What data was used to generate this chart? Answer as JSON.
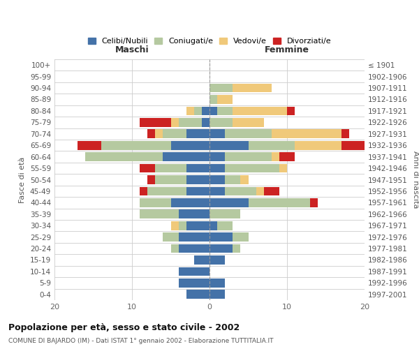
{
  "age_groups": [
    "0-4",
    "5-9",
    "10-14",
    "15-19",
    "20-24",
    "25-29",
    "30-34",
    "35-39",
    "40-44",
    "45-49",
    "50-54",
    "55-59",
    "60-64",
    "65-69",
    "70-74",
    "75-79",
    "80-84",
    "85-89",
    "90-94",
    "95-99",
    "100+"
  ],
  "birth_years": [
    "1997-2001",
    "1992-1996",
    "1987-1991",
    "1982-1986",
    "1977-1981",
    "1972-1976",
    "1967-1971",
    "1962-1966",
    "1957-1961",
    "1952-1956",
    "1947-1951",
    "1942-1946",
    "1937-1941",
    "1932-1936",
    "1927-1931",
    "1922-1926",
    "1917-1921",
    "1912-1916",
    "1907-1911",
    "1902-1906",
    "≤ 1901"
  ],
  "males": {
    "celibi": [
      3,
      4,
      4,
      2,
      4,
      4,
      3,
      4,
      5,
      3,
      3,
      3,
      6,
      5,
      3,
      1,
      1,
      0,
      0,
      0,
      0
    ],
    "coniugati": [
      0,
      0,
      0,
      0,
      1,
      2,
      1,
      5,
      4,
      5,
      4,
      4,
      10,
      9,
      3,
      3,
      1,
      0,
      0,
      0,
      0
    ],
    "vedovi": [
      0,
      0,
      0,
      0,
      0,
      0,
      1,
      0,
      0,
      0,
      0,
      0,
      0,
      0,
      1,
      1,
      1,
      0,
      0,
      0,
      0
    ],
    "divorziati": [
      0,
      0,
      0,
      0,
      0,
      0,
      0,
      0,
      0,
      1,
      1,
      2,
      0,
      3,
      1,
      4,
      0,
      0,
      0,
      0,
      0
    ]
  },
  "females": {
    "nubili": [
      2,
      2,
      0,
      2,
      3,
      3,
      1,
      0,
      5,
      2,
      2,
      2,
      2,
      5,
      2,
      0,
      1,
      0,
      0,
      0,
      0
    ],
    "coniugate": [
      0,
      0,
      0,
      0,
      1,
      2,
      2,
      4,
      8,
      4,
      2,
      7,
      6,
      6,
      6,
      3,
      2,
      1,
      3,
      0,
      0
    ],
    "vedove": [
      0,
      0,
      0,
      0,
      0,
      0,
      0,
      0,
      0,
      1,
      1,
      1,
      1,
      6,
      9,
      4,
      7,
      2,
      5,
      0,
      0
    ],
    "divorziate": [
      0,
      0,
      0,
      0,
      0,
      0,
      0,
      0,
      1,
      2,
      0,
      0,
      2,
      3,
      1,
      0,
      1,
      0,
      0,
      0,
      0
    ]
  },
  "colors": {
    "celibi": "#4472a8",
    "coniugati": "#b5c9a0",
    "vedovi": "#f0c97a",
    "divorziati": "#cc2222"
  },
  "xlim": 20,
  "title": "Popolazione per età, sesso e stato civile - 2002",
  "subtitle": "COMUNE DI BAJARDO (IM) - Dati ISTAT 1° gennaio 2002 - Elaborazione TUTTITALIA.IT",
  "ylabel_left": "Fasce di età",
  "ylabel_right": "Anni di nascita",
  "xlabel_left": "Maschi",
  "xlabel_right": "Femmine",
  "legend_labels": [
    "Celibi/Nubili",
    "Coniugati/e",
    "Vedovi/e",
    "Divorziati/e"
  ],
  "background_color": "#ffffff",
  "grid_color": "#cccccc"
}
